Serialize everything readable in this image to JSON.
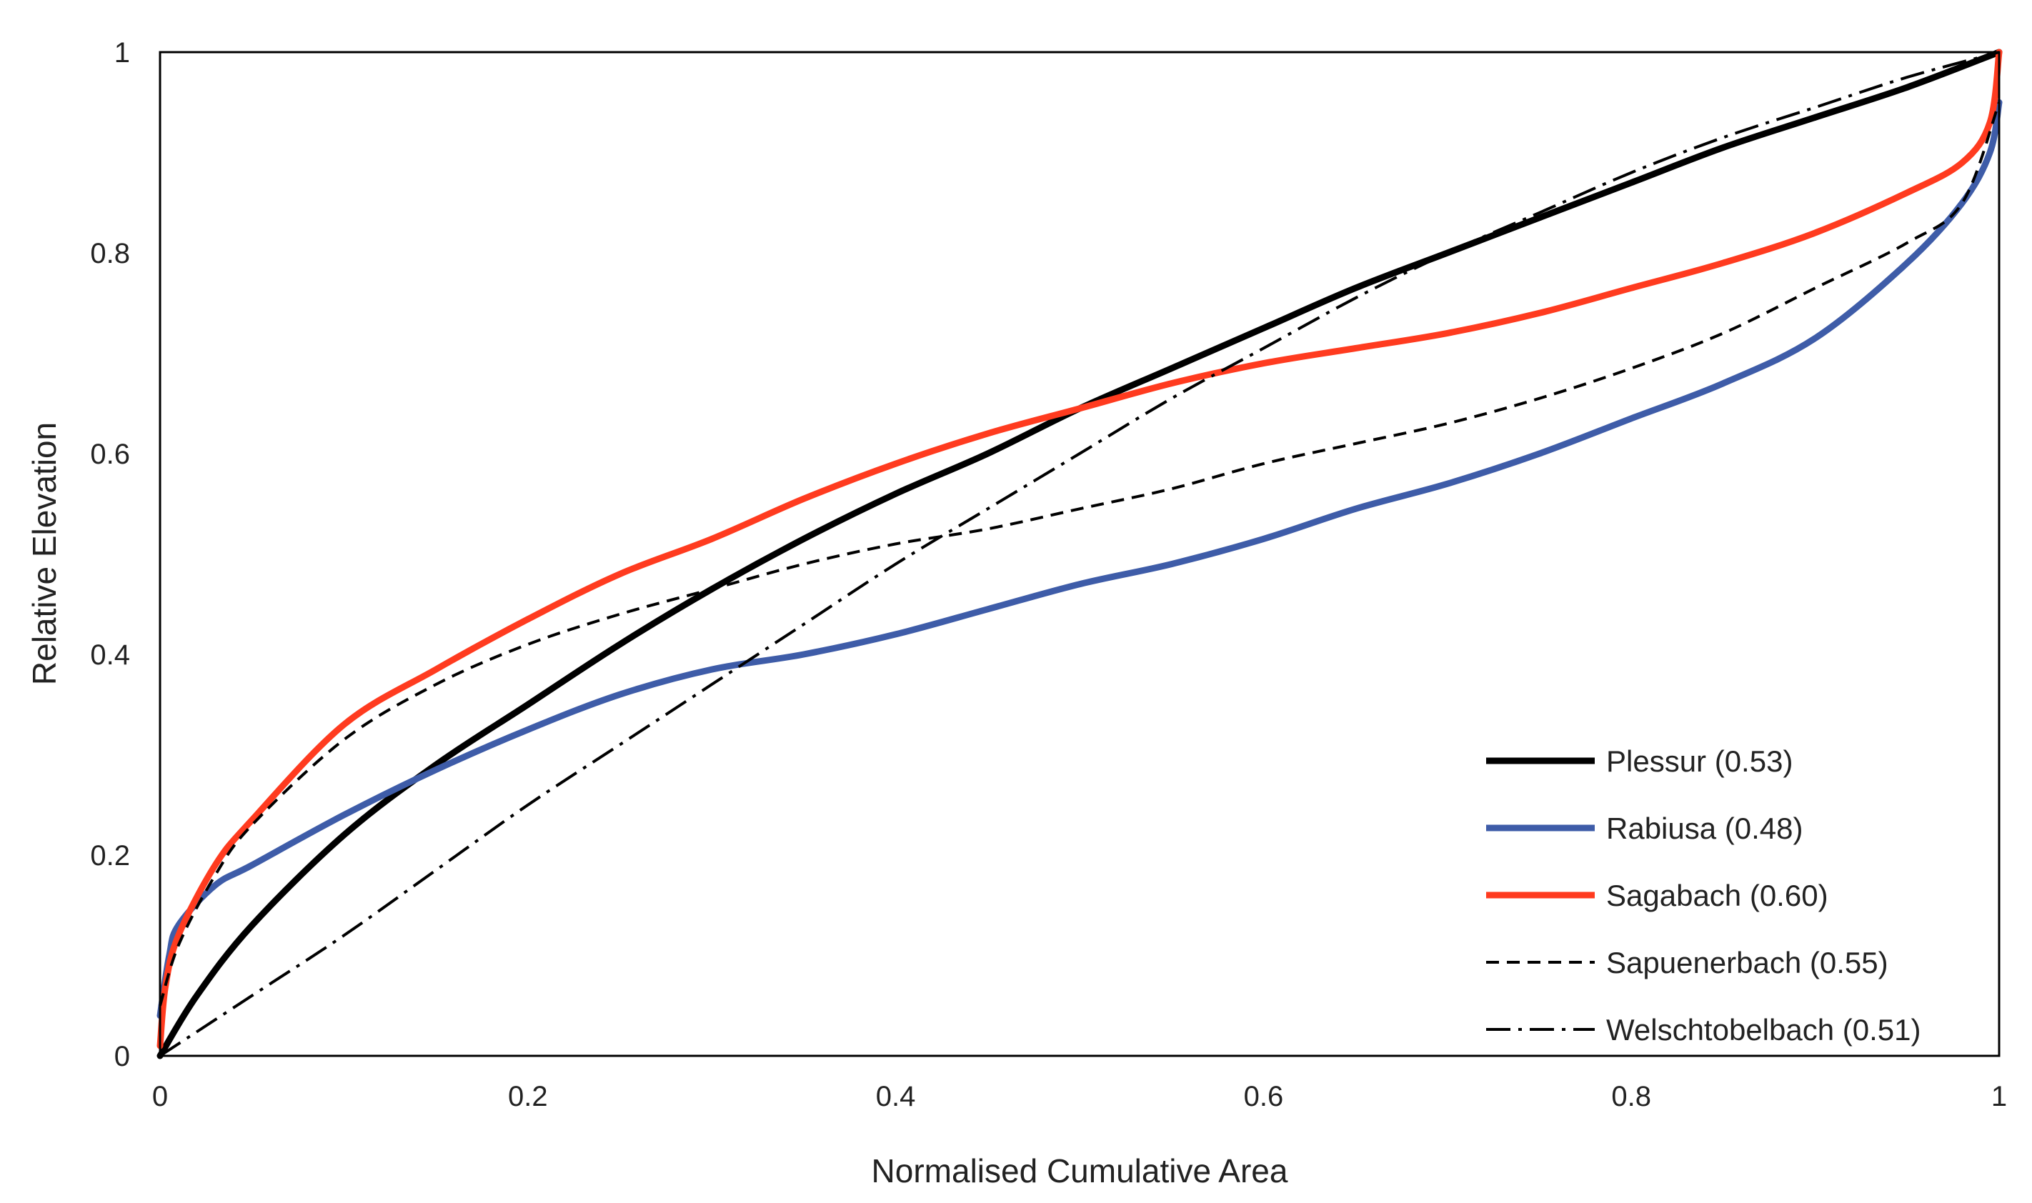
{
  "chart_data": {
    "type": "line",
    "title": "",
    "xlabel": "Normalised Cumulative Area",
    "ylabel": "Relative Elevation",
    "xlim": [
      0,
      1
    ],
    "ylim": [
      0,
      1
    ],
    "grid": false,
    "legend_position": "bottom-right",
    "x_ticks": [
      "0",
      "0.2",
      "0.4",
      "0.6",
      "0.8",
      "1"
    ],
    "y_ticks": [
      "0",
      "0.2",
      "0.4",
      "0.6",
      "0.8",
      "1"
    ],
    "series": [
      {
        "name": "Plessur (0.53)",
        "color": "#000000",
        "style": "solid-thick",
        "points": [
          [
            0,
            0
          ],
          [
            0.02,
            0.06
          ],
          [
            0.05,
            0.13
          ],
          [
            0.1,
            0.22
          ],
          [
            0.15,
            0.29
          ],
          [
            0.2,
            0.35
          ],
          [
            0.25,
            0.41
          ],
          [
            0.3,
            0.465
          ],
          [
            0.35,
            0.515
          ],
          [
            0.4,
            0.56
          ],
          [
            0.45,
            0.6
          ],
          [
            0.5,
            0.645
          ],
          [
            0.55,
            0.685
          ],
          [
            0.6,
            0.725
          ],
          [
            0.65,
            0.765
          ],
          [
            0.7,
            0.8
          ],
          [
            0.75,
            0.835
          ],
          [
            0.8,
            0.87
          ],
          [
            0.85,
            0.905
          ],
          [
            0.9,
            0.935
          ],
          [
            0.95,
            0.965
          ],
          [
            1.0,
            1.0
          ]
        ]
      },
      {
        "name": "Rabiusa (0.48)",
        "color": "#3E5CA8",
        "style": "solid-thick",
        "points": [
          [
            0,
            0.04
          ],
          [
            0.005,
            0.1
          ],
          [
            0.01,
            0.13
          ],
          [
            0.03,
            0.17
          ],
          [
            0.05,
            0.19
          ],
          [
            0.1,
            0.24
          ],
          [
            0.15,
            0.285
          ],
          [
            0.2,
            0.325
          ],
          [
            0.25,
            0.36
          ],
          [
            0.3,
            0.385
          ],
          [
            0.35,
            0.4
          ],
          [
            0.4,
            0.42
          ],
          [
            0.45,
            0.445
          ],
          [
            0.5,
            0.47
          ],
          [
            0.55,
            0.49
          ],
          [
            0.6,
            0.515
          ],
          [
            0.65,
            0.545
          ],
          [
            0.7,
            0.57
          ],
          [
            0.75,
            0.6
          ],
          [
            0.8,
            0.635
          ],
          [
            0.85,
            0.67
          ],
          [
            0.9,
            0.715
          ],
          [
            0.95,
            0.79
          ],
          [
            0.98,
            0.85
          ],
          [
            0.995,
            0.9
          ],
          [
            1.0,
            0.95
          ]
        ]
      },
      {
        "name": "Sagabach (0.60)",
        "color": "#FF3B1F",
        "style": "solid-thick",
        "points": [
          [
            0,
            0.01
          ],
          [
            0.003,
            0.07
          ],
          [
            0.01,
            0.12
          ],
          [
            0.03,
            0.19
          ],
          [
            0.05,
            0.235
          ],
          [
            0.1,
            0.33
          ],
          [
            0.15,
            0.385
          ],
          [
            0.2,
            0.435
          ],
          [
            0.25,
            0.48
          ],
          [
            0.3,
            0.515
          ],
          [
            0.35,
            0.555
          ],
          [
            0.4,
            0.59
          ],
          [
            0.45,
            0.62
          ],
          [
            0.5,
            0.645
          ],
          [
            0.55,
            0.67
          ],
          [
            0.6,
            0.69
          ],
          [
            0.65,
            0.705
          ],
          [
            0.7,
            0.72
          ],
          [
            0.75,
            0.74
          ],
          [
            0.8,
            0.765
          ],
          [
            0.85,
            0.79
          ],
          [
            0.9,
            0.82
          ],
          [
            0.95,
            0.86
          ],
          [
            0.98,
            0.89
          ],
          [
            0.995,
            0.93
          ],
          [
            1.0,
            1.0
          ]
        ]
      },
      {
        "name": "Sapuenerbach (0.55)",
        "color": "#000000",
        "style": "dashed",
        "points": [
          [
            0,
            0.05
          ],
          [
            0.01,
            0.11
          ],
          [
            0.03,
            0.18
          ],
          [
            0.05,
            0.23
          ],
          [
            0.1,
            0.315
          ],
          [
            0.15,
            0.37
          ],
          [
            0.2,
            0.41
          ],
          [
            0.25,
            0.44
          ],
          [
            0.3,
            0.465
          ],
          [
            0.35,
            0.49
          ],
          [
            0.4,
            0.51
          ],
          [
            0.45,
            0.525
          ],
          [
            0.5,
            0.545
          ],
          [
            0.55,
            0.565
          ],
          [
            0.6,
            0.59
          ],
          [
            0.65,
            0.61
          ],
          [
            0.7,
            0.63
          ],
          [
            0.75,
            0.655
          ],
          [
            0.8,
            0.685
          ],
          [
            0.85,
            0.72
          ],
          [
            0.9,
            0.765
          ],
          [
            0.95,
            0.81
          ],
          [
            0.98,
            0.85
          ],
          [
            1.0,
            0.95
          ]
        ]
      },
      {
        "name": "Welschtobelbach (0.51)",
        "color": "#000000",
        "style": "dash-dot",
        "points": [
          [
            0,
            0
          ],
          [
            0.05,
            0.06
          ],
          [
            0.1,
            0.12
          ],
          [
            0.15,
            0.185
          ],
          [
            0.2,
            0.25
          ],
          [
            0.25,
            0.31
          ],
          [
            0.3,
            0.37
          ],
          [
            0.35,
            0.43
          ],
          [
            0.4,
            0.49
          ],
          [
            0.45,
            0.545
          ],
          [
            0.5,
            0.6
          ],
          [
            0.55,
            0.655
          ],
          [
            0.6,
            0.705
          ],
          [
            0.65,
            0.755
          ],
          [
            0.7,
            0.8
          ],
          [
            0.75,
            0.84
          ],
          [
            0.8,
            0.88
          ],
          [
            0.85,
            0.915
          ],
          [
            0.9,
            0.945
          ],
          [
            0.95,
            0.975
          ],
          [
            1.0,
            1.0
          ]
        ]
      }
    ]
  }
}
